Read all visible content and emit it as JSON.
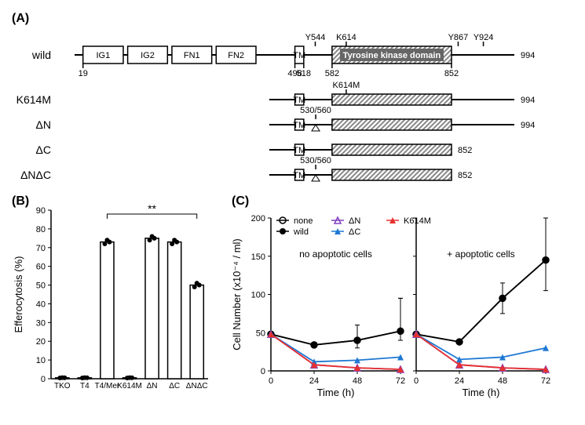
{
  "panelA": {
    "label": "(A)",
    "constructs": [
      {
        "name": "wild",
        "domains": [
          {
            "label": "IG1",
            "start": 19,
            "end": 110,
            "fill": "#ffffff",
            "hatched": false
          },
          {
            "label": "IG2",
            "start": 120,
            "end": 210,
            "fill": "#ffffff",
            "hatched": false
          },
          {
            "label": "FN1",
            "start": 220,
            "end": 310,
            "fill": "#ffffff",
            "hatched": false
          },
          {
            "label": "FN2",
            "start": 320,
            "end": 410,
            "fill": "#ffffff",
            "hatched": false
          },
          {
            "label": "TM",
            "start": 498,
            "end": 518,
            "fill": "#ffffff",
            "hatched": false
          },
          {
            "label": "Tyrosine kinase domain",
            "start": 582,
            "end": 852,
            "fill": "#ffffff",
            "hatched": true
          }
        ],
        "ticks_above": [
          {
            "pos": 544,
            "label": "Y544"
          },
          {
            "pos": 614,
            "label": "K614"
          },
          {
            "pos": 867,
            "label": "Y867"
          },
          {
            "pos": 924,
            "label": "Y924"
          }
        ],
        "ticks_below": [
          {
            "pos": 19,
            "label": "19"
          },
          {
            "pos": 498,
            "label": "498"
          },
          {
            "pos": 518,
            "label": "518"
          },
          {
            "pos": 582,
            "label": "582"
          },
          {
            "pos": 852,
            "label": "852"
          }
        ],
        "end_label": "994",
        "end": 994
      },
      {
        "name": "K614M",
        "domains": [
          {
            "label": "TM",
            "start": 498,
            "end": 518,
            "fill": "#ffffff",
            "hatched": false
          },
          {
            "label": "",
            "start": 582,
            "end": 852,
            "fill": "#ffffff",
            "hatched": true
          }
        ],
        "ticks_above": [
          {
            "pos": 614,
            "label": "K614M"
          }
        ],
        "end_label": "994",
        "end": 994
      },
      {
        "name": "ΔN",
        "domains": [
          {
            "label": "TM",
            "start": 498,
            "end": 518,
            "fill": "#ffffff",
            "hatched": false
          },
          {
            "label": "",
            "start": 582,
            "end": 852,
            "fill": "#ffffff",
            "hatched": true
          }
        ],
        "ticks_above": [
          {
            "pos": 545,
            "label": "530/560"
          }
        ],
        "triangle": 545,
        "end_label": "994",
        "end": 994
      },
      {
        "name": "ΔC",
        "domains": [
          {
            "label": "TM",
            "start": 498,
            "end": 518,
            "fill": "#ffffff",
            "hatched": false
          },
          {
            "label": "",
            "start": 582,
            "end": 852,
            "fill": "#ffffff",
            "hatched": true
          }
        ],
        "end_label": "852",
        "end": 852
      },
      {
        "name": "ΔNΔC",
        "domains": [
          {
            "label": "TM",
            "start": 498,
            "end": 518,
            "fill": "#ffffff",
            "hatched": false
          },
          {
            "label": "",
            "start": 582,
            "end": 852,
            "fill": "#ffffff",
            "hatched": true
          }
        ],
        "ticks_above": [
          {
            "pos": 545,
            "label": "530/560"
          }
        ],
        "triangle": 545,
        "end_label": "852",
        "end": 852
      }
    ]
  },
  "panelB": {
    "label": "(B)",
    "type": "bar",
    "ylabel": "Efferocytosis (%)",
    "ylim": [
      0,
      90
    ],
    "ytick_step": 10,
    "categories": [
      "TKO",
      "T4",
      "T4/Mer",
      "K614M",
      "ΔN",
      "ΔC",
      "ΔNΔC"
    ],
    "values": [
      0.5,
      0.5,
      73,
      0.5,
      75,
      73,
      50
    ],
    "points": [
      [
        0.4,
        0.6,
        0.5
      ],
      [
        0.4,
        0.6,
        0.5
      ],
      [
        72,
        74,
        73
      ],
      [
        0.4,
        0.6,
        0.5
      ],
      [
        74,
        76,
        75
      ],
      [
        72,
        74,
        73
      ],
      [
        49,
        51,
        50
      ]
    ],
    "bar_fill": "#ffffff",
    "bar_stroke": "#000000",
    "point_color": "#000000",
    "annotation": {
      "from": 2,
      "to": 6,
      "label": "**"
    }
  },
  "panelC": {
    "label": "(C)",
    "type": "line",
    "ylabel": "Cell Number (x10⁻⁴ / ml)",
    "xlabel": "Time (h)",
    "ylim": [
      0,
      200
    ],
    "ytick_step": 50,
    "xticks": [
      0,
      24,
      48,
      72
    ],
    "legend": [
      {
        "name": "none",
        "color": "#000000",
        "marker": "open-circle"
      },
      {
        "name": "wild",
        "color": "#000000",
        "marker": "filled-circle"
      },
      {
        "name": "ΔN",
        "color": "#8040c0",
        "marker": "open-triangle"
      },
      {
        "name": "ΔC",
        "color": "#1e78d2",
        "marker": "filled-triangle"
      },
      {
        "name": "K614M",
        "color": "#e83030",
        "marker": "filled-triangle"
      }
    ],
    "subplots": [
      {
        "title": "no apoptotic cells",
        "series": {
          "none": [
            [
              0,
              48
            ],
            [
              24,
              34
            ],
            [
              48,
              40
            ],
            [
              72,
              52
            ]
          ],
          "wild": [
            [
              0,
              48
            ],
            [
              24,
              34
            ],
            [
              48,
              40
            ],
            [
              72,
              52
            ]
          ],
          "ΔN": [
            [
              0,
              48
            ],
            [
              24,
              8
            ],
            [
              48,
              4
            ],
            [
              72,
              2
            ]
          ],
          "ΔC": [
            [
              0,
              48
            ],
            [
              24,
              12
            ],
            [
              48,
              14
            ],
            [
              72,
              18
            ]
          ],
          "K614M": [
            [
              0,
              48
            ],
            [
              24,
              8
            ],
            [
              48,
              4
            ],
            [
              72,
              2
            ]
          ]
        },
        "err": {
          "none": [
            [
              72,
              40,
              95
            ]
          ],
          "wild": [
            [
              48,
              30,
              60
            ],
            [
              72,
              40,
              95
            ]
          ]
        }
      },
      {
        "title": "+ apoptotic cells",
        "series": {
          "none": [
            [
              0,
              48
            ],
            [
              24,
              38
            ],
            [
              48,
              95
            ],
            [
              72,
              145
            ]
          ],
          "wild": [
            [
              0,
              48
            ],
            [
              24,
              38
            ],
            [
              48,
              95
            ],
            [
              72,
              145
            ]
          ],
          "ΔN": [
            [
              0,
              48
            ],
            [
              24,
              8
            ],
            [
              48,
              4
            ],
            [
              72,
              2
            ]
          ],
          "ΔC": [
            [
              0,
              48
            ],
            [
              24,
              15
            ],
            [
              48,
              18
            ],
            [
              72,
              30
            ]
          ],
          "K614M": [
            [
              0,
              48
            ],
            [
              24,
              8
            ],
            [
              48,
              4
            ],
            [
              72,
              2
            ]
          ]
        },
        "err": {
          "wild": [
            [
              48,
              75,
              115
            ],
            [
              72,
              105,
              200
            ]
          ]
        }
      }
    ]
  }
}
